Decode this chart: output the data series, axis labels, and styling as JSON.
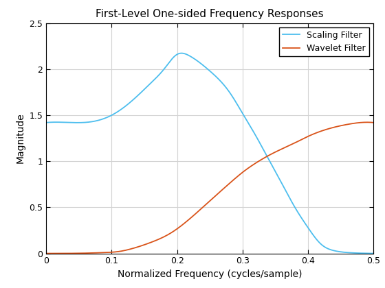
{
  "title": "First-Level One-sided Frequency Responses",
  "xlabel": "Normalized Frequency (cycles/sample)",
  "ylabel": "Magnitude",
  "xlim": [
    0,
    0.5
  ],
  "ylim": [
    0,
    2.5
  ],
  "xticks": [
    0,
    0.1,
    0.2,
    0.3,
    0.4,
    0.5
  ],
  "yticks": [
    0,
    0.5,
    1.0,
    1.5,
    2.0,
    2.5
  ],
  "scaling_color": "#4DBEEE",
  "wavelet_color": "#D95319",
  "line_width": 1.3,
  "legend_labels": [
    "Scaling Filter",
    "Wavelet Filter"
  ],
  "legend_loc": "upper right",
  "grid_color": "#D3D3D3",
  "background_color": "#FFFFFF",
  "title_fontsize": 11,
  "label_fontsize": 10,
  "tick_fontsize": 9,
  "scaling_xp": [
    0,
    0.04,
    0.07,
    0.1,
    0.13,
    0.16,
    0.18,
    0.2,
    0.22,
    0.25,
    0.28,
    0.3,
    0.32,
    0.34,
    0.36,
    0.38,
    0.4,
    0.42,
    0.44,
    0.46,
    0.48,
    0.5
  ],
  "scaling_yp": [
    1.42,
    1.42,
    1.43,
    1.5,
    1.65,
    1.85,
    2.0,
    2.16,
    2.14,
    1.98,
    1.75,
    1.52,
    1.28,
    1.02,
    0.76,
    0.5,
    0.28,
    0.1,
    0.03,
    0.01,
    0.003,
    0.0
  ],
  "wavelet_xp": [
    0,
    0.04,
    0.07,
    0.09,
    0.11,
    0.13,
    0.16,
    0.19,
    0.22,
    0.25,
    0.28,
    0.3,
    0.32,
    0.35,
    0.38,
    0.4,
    0.43,
    0.46,
    0.48,
    0.5
  ],
  "wavelet_yp": [
    0.0,
    0.001,
    0.005,
    0.01,
    0.02,
    0.05,
    0.12,
    0.22,
    0.38,
    0.57,
    0.76,
    0.88,
    0.98,
    1.1,
    1.2,
    1.27,
    1.35,
    1.4,
    1.42,
    1.42
  ]
}
